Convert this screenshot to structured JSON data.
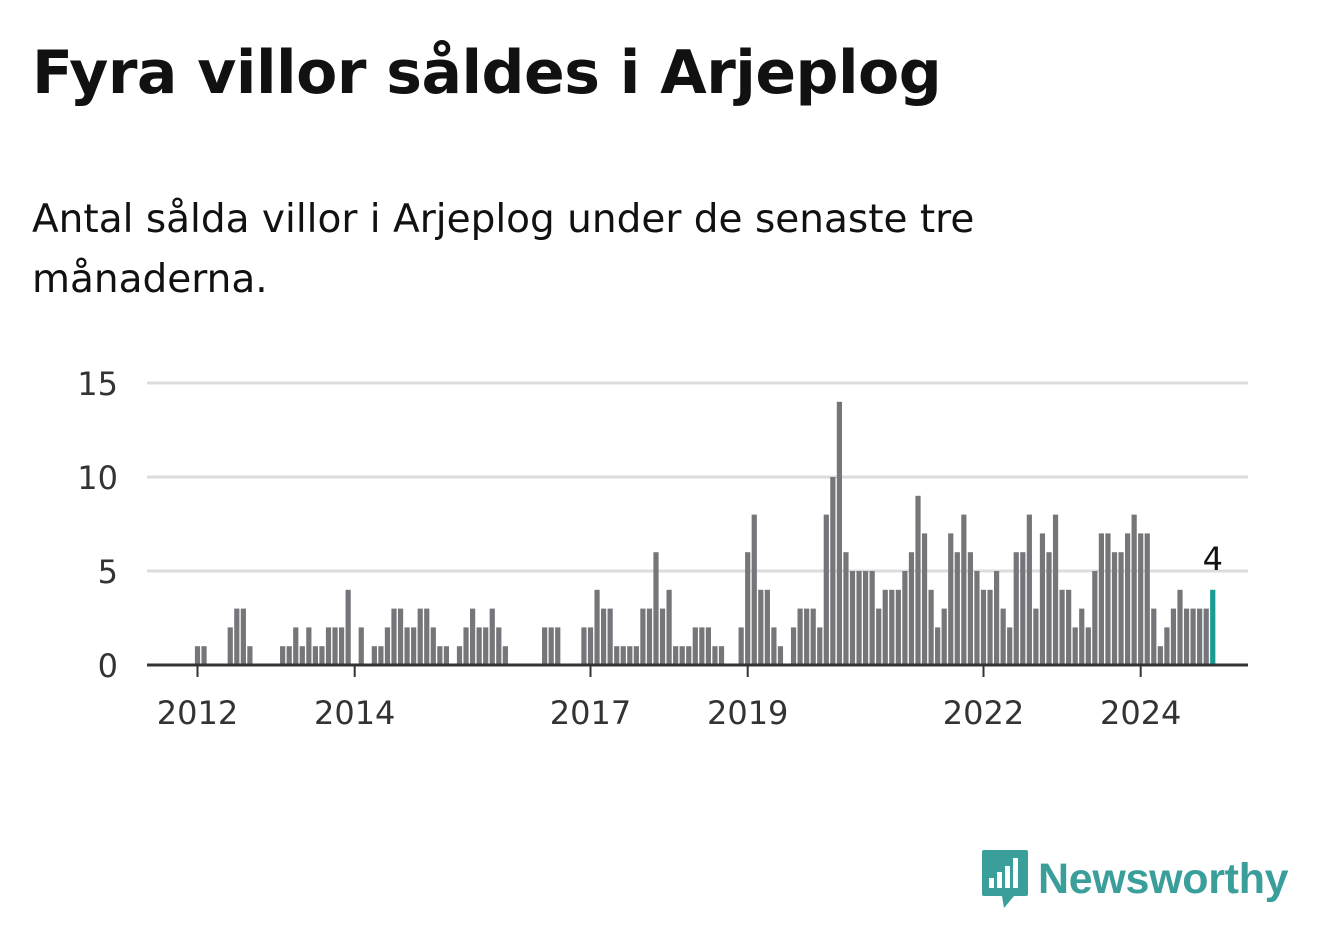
{
  "header": {
    "title": "Fyra villor såldes i Arjeplog",
    "subtitle": "Antal sålda villor i Arjeplog under de senaste tre månaderna."
  },
  "brand": {
    "name": "Newsworthy",
    "icon": "newsworthy-bar-chart-icon"
  },
  "colors": {
    "bar": "#76757a",
    "highlight": "#1a9c94",
    "grid": "#dcdcdc",
    "axis": "#333333",
    "brand": "#3a9e9b"
  },
  "chart_data": {
    "type": "bar",
    "title": "Fyra villor såldes i Arjeplog",
    "xlabel": "",
    "ylabel": "",
    "ylim": [
      0,
      15
    ],
    "yticks": [
      0,
      5,
      10,
      15
    ],
    "grid": true,
    "x_start": "2012-01",
    "frequency": "monthly",
    "xticks": [
      {
        "label": "2012",
        "index": 0
      },
      {
        "label": "2014",
        "index": 24
      },
      {
        "label": "2017",
        "index": 60
      },
      {
        "label": "2019",
        "index": 84
      },
      {
        "label": "2022",
        "index": 120
      },
      {
        "label": "2024",
        "index": 144
      }
    ],
    "values": [
      1,
      1,
      0,
      0,
      0,
      2,
      3,
      3,
      1,
      0,
      0,
      0,
      0,
      1,
      1,
      2,
      1,
      2,
      1,
      1,
      2,
      2,
      2,
      4,
      0,
      2,
      0,
      1,
      1,
      2,
      3,
      3,
      2,
      2,
      3,
      3,
      2,
      1,
      1,
      0,
      1,
      2,
      3,
      2,
      2,
      3,
      2,
      1,
      0,
      0,
      0,
      0,
      0,
      2,
      2,
      2,
      0,
      0,
      0,
      2,
      2,
      4,
      3,
      3,
      1,
      1,
      1,
      1,
      3,
      3,
      6,
      3,
      4,
      1,
      1,
      1,
      2,
      2,
      2,
      1,
      1,
      0,
      0,
      2,
      6,
      8,
      4,
      4,
      2,
      1,
      0,
      2,
      3,
      3,
      3,
      2,
      8,
      10,
      14,
      6,
      5,
      5,
      5,
      5,
      3,
      4,
      4,
      4,
      5,
      6,
      9,
      7,
      4,
      2,
      3,
      7,
      6,
      8,
      6,
      5,
      4,
      4,
      5,
      3,
      2,
      6,
      6,
      8,
      3,
      7,
      6,
      8,
      4,
      4,
      2,
      3,
      2,
      5,
      7,
      7,
      6,
      6,
      7,
      8,
      7,
      7,
      3,
      1,
      2,
      3,
      4,
      3,
      3,
      3,
      3,
      4
    ],
    "highlight_last": true,
    "annotation": {
      "label": "4",
      "target": "last"
    }
  }
}
